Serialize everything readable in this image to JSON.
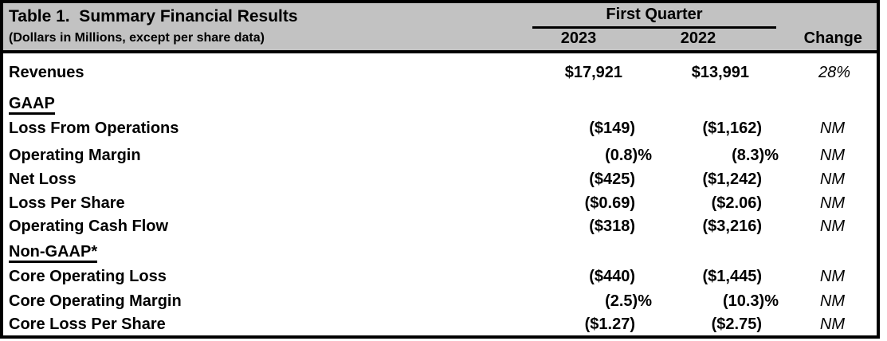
{
  "header": {
    "title": "Table 1.  Summary Financial Results",
    "subtitle": "(Dollars in Millions, except per share data)",
    "group_label": "First Quarter",
    "col_2023": "2023",
    "col_2022": "2022",
    "col_change": "Change"
  },
  "rows": [
    {
      "label": "Revenues",
      "v2023": "$17,921",
      "v2022": "$13,991",
      "change": "28%"
    },
    {
      "label": "GAAP",
      "v2023": "",
      "v2022": "",
      "change": ""
    },
    {
      "label": "Loss From Operations",
      "v2023": "($149)",
      "v2022": "($1,162)",
      "change": "NM"
    },
    {
      "label": "Operating Margin",
      "v2023": "(0.8)%",
      "v2022": "(8.3)%",
      "change": "NM"
    },
    {
      "label": "Net Loss",
      "v2023": "($425)",
      "v2022": "($1,242)",
      "change": "NM"
    },
    {
      "label": "Loss Per Share",
      "v2023": "($0.69)",
      "v2022": "($2.06)",
      "change": "NM"
    },
    {
      "label": "Operating Cash Flow",
      "v2023": "($318)",
      "v2022": "($3,216)",
      "change": "NM"
    },
    {
      "label": "Non-GAAP*",
      "v2023": "",
      "v2022": "",
      "change": ""
    },
    {
      "label": "Core Operating Loss",
      "v2023": "($440)",
      "v2022": "($1,445)",
      "change": "NM"
    },
    {
      "label": "Core Operating Margin",
      "v2023": "(2.5)%",
      "v2022": "(10.3)%",
      "change": "NM"
    },
    {
      "label": "Core Loss Per Share",
      "v2023": "($1.27)",
      "v2022": "($2.75)",
      "change": "NM"
    }
  ],
  "colors": {
    "header_bg": "#c2c2c2",
    "border": "#000000",
    "text": "#000000"
  }
}
